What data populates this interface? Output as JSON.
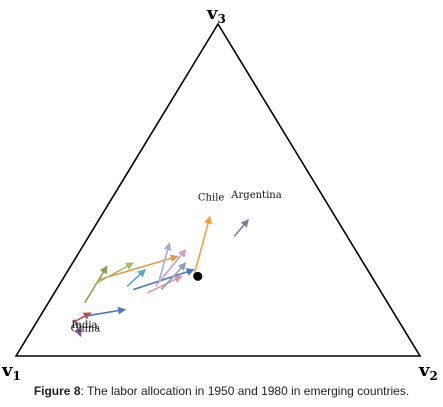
{
  "chart_data": {
    "type": "scatter",
    "subtype": "ternary-arrows",
    "vertices": {
      "v1": {
        "letter": "v",
        "subscript": "1"
      },
      "v2": {
        "letter": "v",
        "subscript": "2"
      },
      "v3": {
        "letter": "v",
        "subscript": "3"
      }
    },
    "point": {
      "v1": 0.43,
      "v2": 0.33,
      "v3": 0.24
    },
    "arrows": [
      {
        "label": "Chile",
        "color": "#f0a040",
        "from": {
          "v1": 0.44,
          "v2": 0.32,
          "v3": 0.24
        },
        "to": {
          "v1": 0.31,
          "v2": 0.27,
          "v3": 0.42
        }
      },
      {
        "label": "Argentina",
        "color": "#8878a8",
        "from": {
          "v1": 0.28,
          "v2": 0.36,
          "v3": 0.36
        },
        "to": {
          "v1": 0.22,
          "v2": 0.37,
          "v3": 0.41
        }
      },
      {
        "label": "India",
        "color": "#c05048",
        "from": {
          "v1": 0.81,
          "v2": 0.09,
          "v3": 0.1
        },
        "to": {
          "v1": 0.75,
          "v2": 0.12,
          "v3": 0.13
        }
      },
      {
        "label": "China",
        "color": "#7a5a98",
        "from": {
          "v1": 0.8,
          "v2": 0.09,
          "v3": 0.11
        },
        "to": {
          "v1": 0.81,
          "v2": 0.13,
          "v3": 0.06
        }
      },
      {
        "label": "",
        "color": "#4a7ab8",
        "from": {
          "v1": 0.77,
          "v2": 0.11,
          "v3": 0.12
        },
        "to": {
          "v1": 0.66,
          "v2": 0.2,
          "v3": 0.14
        }
      },
      {
        "label": "",
        "color": "#4a7ab8",
        "from": {
          "v1": 0.61,
          "v2": 0.19,
          "v3": 0.2
        },
        "to": {
          "v1": 0.43,
          "v2": 0.31,
          "v3": 0.26
        }
      },
      {
        "label": "",
        "color": "#e09850",
        "from": {
          "v1": 0.68,
          "v2": 0.09,
          "v3": 0.23
        },
        "to": {
          "v1": 0.45,
          "v2": 0.25,
          "v3": 0.3
        }
      },
      {
        "label": "",
        "color": "#8ca050",
        "from": {
          "v1": 0.75,
          "v2": 0.09,
          "v3": 0.16
        },
        "to": {
          "v1": 0.64,
          "v2": 0.09,
          "v3": 0.27
        }
      },
      {
        "label": "",
        "color": "#a8b868",
        "from": {
          "v1": 0.69,
          "v2": 0.09,
          "v3": 0.22
        },
        "to": {
          "v1": 0.57,
          "v2": 0.15,
          "v3": 0.28
        }
      },
      {
        "label": "",
        "color": "#a0b0d0",
        "from": {
          "v1": 0.53,
          "v2": 0.24,
          "v3": 0.23
        },
        "to": {
          "v1": 0.45,
          "v2": 0.21,
          "v3": 0.34
        }
      },
      {
        "label": "",
        "color": "#c8a0c8",
        "from": {
          "v1": 0.55,
          "v2": 0.24,
          "v3": 0.21
        },
        "to": {
          "v1": 0.42,
          "v2": 0.26,
          "v3": 0.32
        }
      },
      {
        "label": "",
        "color": "#58a8c0",
        "from": {
          "v1": 0.62,
          "v2": 0.17,
          "v3": 0.21
        },
        "to": {
          "v1": 0.55,
          "v2": 0.19,
          "v3": 0.26
        }
      },
      {
        "label": "",
        "color": "#d898a8",
        "from": {
          "v1": 0.58,
          "v2": 0.23,
          "v3": 0.19
        },
        "to": {
          "v1": 0.47,
          "v2": 0.29,
          "v3": 0.24
        }
      },
      {
        "label": "",
        "color": "#9098c0",
        "from": {
          "v1": 0.54,
          "v2": 0.26,
          "v3": 0.2
        },
        "to": {
          "v1": 0.44,
          "v2": 0.28,
          "v3": 0.28
        }
      }
    ]
  },
  "caption": {
    "label": "Figure 8",
    "text": ": The labor allocation in 1950 and 1980 in emerging countries."
  }
}
